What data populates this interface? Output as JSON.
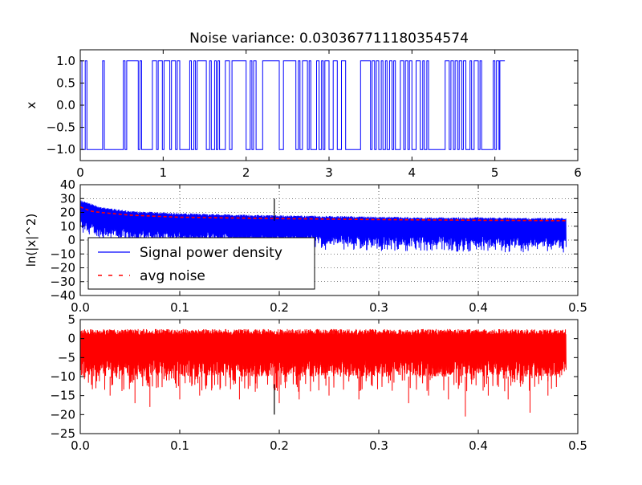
{
  "figure": {
    "title": "Noise variance: 0.030367711180354574"
  },
  "chart_data": [
    {
      "type": "line",
      "title": "Noise variance: 0.030367711180354574",
      "xlabel": "",
      "ylabel": "x",
      "xlim": [
        0,
        6
      ],
      "ylim": [
        -1.25,
        1.25
      ],
      "xticks": [
        "0",
        "1",
        "2",
        "3",
        "4",
        "5",
        "6"
      ],
      "yticks": [
        "1.0",
        "0.5",
        "0.0",
        "−0.5",
        "−1.0"
      ],
      "grid": false,
      "series": [
        {
          "color": "#0000ff",
          "style": "step",
          "x_end": 5.12,
          "transitions": [
            [
              0.0,
              1
            ],
            [
              0.02,
              -1
            ],
            [
              0.06,
              1
            ],
            [
              0.08,
              -1
            ],
            [
              0.27,
              1
            ],
            [
              0.29,
              -1
            ],
            [
              0.52,
              1
            ],
            [
              0.54,
              -1
            ],
            [
              0.56,
              1
            ],
            [
              0.7,
              -1
            ],
            [
              0.72,
              1
            ],
            [
              0.74,
              -1
            ],
            [
              0.87,
              1
            ],
            [
              0.92,
              -1
            ],
            [
              0.94,
              1
            ],
            [
              0.99,
              -1
            ],
            [
              1.01,
              1
            ],
            [
              1.08,
              -1
            ],
            [
              1.1,
              1
            ],
            [
              1.15,
              -1
            ],
            [
              1.17,
              1
            ],
            [
              1.2,
              -1
            ],
            [
              1.32,
              1
            ],
            [
              1.34,
              -1
            ],
            [
              1.37,
              1
            ],
            [
              1.39,
              -1
            ],
            [
              1.41,
              1
            ],
            [
              1.52,
              -1
            ],
            [
              1.56,
              1
            ],
            [
              1.58,
              -1
            ],
            [
              1.62,
              1
            ],
            [
              1.64,
              -1
            ],
            [
              1.66,
              1
            ],
            [
              1.68,
              -1
            ],
            [
              1.75,
              1
            ],
            [
              1.8,
              -1
            ],
            [
              1.83,
              1
            ],
            [
              2.0,
              -1
            ],
            [
              2.05,
              1
            ],
            [
              2.07,
              -1
            ],
            [
              2.09,
              1
            ],
            [
              2.12,
              -1
            ],
            [
              2.2,
              1
            ],
            [
              2.4,
              -1
            ],
            [
              2.45,
              1
            ],
            [
              2.6,
              -1
            ],
            [
              2.63,
              1
            ],
            [
              2.65,
              -1
            ],
            [
              2.68,
              1
            ],
            [
              2.74,
              -1
            ],
            [
              2.76,
              1
            ],
            [
              2.78,
              -1
            ],
            [
              2.85,
              1
            ],
            [
              2.88,
              -1
            ],
            [
              2.91,
              1
            ],
            [
              2.93,
              -1
            ],
            [
              2.95,
              1
            ],
            [
              3.0,
              -1
            ],
            [
              3.05,
              1
            ],
            [
              3.1,
              -1
            ],
            [
              3.15,
              1
            ],
            [
              3.2,
              -1
            ],
            [
              3.38,
              1
            ],
            [
              3.5,
              -1
            ],
            [
              3.52,
              1
            ],
            [
              3.55,
              -1
            ],
            [
              3.57,
              1
            ],
            [
              3.6,
              -1
            ],
            [
              3.63,
              1
            ],
            [
              3.65,
              -1
            ],
            [
              3.68,
              1
            ],
            [
              3.7,
              -1
            ],
            [
              3.73,
              1
            ],
            [
              3.76,
              -1
            ],
            [
              3.78,
              1
            ],
            [
              3.8,
              -1
            ],
            [
              3.86,
              1
            ],
            [
              3.9,
              -1
            ],
            [
              3.92,
              1
            ],
            [
              3.95,
              -1
            ],
            [
              3.97,
              1
            ],
            [
              4.0,
              -1
            ],
            [
              4.05,
              1
            ],
            [
              4.1,
              -1
            ],
            [
              4.13,
              1
            ],
            [
              4.15,
              -1
            ],
            [
              4.18,
              1
            ],
            [
              4.2,
              -1
            ],
            [
              4.4,
              1
            ],
            [
              4.45,
              -1
            ],
            [
              4.47,
              1
            ],
            [
              4.5,
              -1
            ],
            [
              4.52,
              1
            ],
            [
              4.55,
              -1
            ],
            [
              4.57,
              1
            ],
            [
              4.6,
              -1
            ],
            [
              4.62,
              1
            ],
            [
              4.65,
              -1
            ],
            [
              4.7,
              1
            ],
            [
              4.72,
              -1
            ],
            [
              4.75,
              1
            ],
            [
              4.8,
              -1
            ],
            [
              4.82,
              1
            ],
            [
              4.84,
              -1
            ],
            [
              4.98,
              1
            ],
            [
              5.0,
              -1
            ],
            [
              5.02,
              1
            ],
            [
              5.05,
              -1
            ],
            [
              5.06,
              1
            ]
          ]
        }
      ]
    },
    {
      "type": "line",
      "title": "",
      "xlabel": "",
      "ylabel": "ln(|x|^2)",
      "xlim": [
        0,
        0.5
      ],
      "ylim": [
        -40,
        40
      ],
      "xticks": [
        "0.0",
        "0.1",
        "0.2",
        "0.3",
        "0.4",
        "0.5"
      ],
      "yticks": [
        "40",
        "30",
        "20",
        "10",
        "0",
        "−10",
        "−20",
        "−30",
        "−40"
      ],
      "grid": true,
      "legend": {
        "placement": "center-left",
        "entries": [
          "Signal power density",
          "avg noise"
        ]
      },
      "series": [
        {
          "name": "Signal power density",
          "color": "#0000ff",
          "style": "noisy band",
          "x": [
            0.0,
            0.02,
            0.05,
            0.1,
            0.15,
            0.2,
            0.25,
            0.3,
            0.35,
            0.4,
            0.45,
            0.488
          ],
          "upper": [
            29,
            24,
            21,
            19.5,
            18.5,
            18,
            17.5,
            17,
            16.5,
            16.5,
            16,
            16
          ],
          "lower": [
            8,
            2,
            1,
            -1,
            -2,
            -3,
            -3,
            -4,
            -4,
            -5,
            -5,
            -5
          ]
        },
        {
          "name": "avg noise",
          "color": "#ff0000",
          "style": "dashed",
          "x": [
            0.0,
            0.01,
            0.02,
            0.05,
            0.1,
            0.15,
            0.2,
            0.3,
            0.4,
            0.488
          ],
          "values": [
            24,
            21,
            20,
            18,
            16.5,
            16,
            15.5,
            14.8,
            14.3,
            14
          ]
        }
      ],
      "annotations": [
        {
          "type": "spike",
          "x": 0.195,
          "y_from": 14,
          "y_to": 30,
          "color": "#000000"
        }
      ]
    },
    {
      "type": "line",
      "title": "",
      "xlabel": "",
      "ylabel": "",
      "xlim": [
        0,
        0.5
      ],
      "ylim": [
        -25,
        5
      ],
      "xticks": [
        "0.0",
        "0.1",
        "0.2",
        "0.3",
        "0.4",
        "0.5"
      ],
      "yticks": [
        "5",
        "0",
        "−5",
        "−10",
        "−15",
        "−20",
        "−25"
      ],
      "grid": false,
      "series": [
        {
          "color": "#ff0000",
          "style": "noisy band",
          "x_start": 0.0,
          "x_end": 0.488,
          "upper": 2.5,
          "lower": -10,
          "outliers": [
            [
              0.03,
              -15
            ],
            [
              0.055,
              -17
            ],
            [
              0.07,
              -18
            ],
            [
              0.1,
              -16
            ],
            [
              0.12,
              -15
            ],
            [
              0.16,
              -16
            ],
            [
              0.2,
              -17
            ],
            [
              0.22,
              -16
            ],
            [
              0.25,
              -15
            ],
            [
              0.28,
              -16
            ],
            [
              0.33,
              -17
            ],
            [
              0.35,
              -15
            ],
            [
              0.37,
              -16
            ],
            [
              0.387,
              -20.5
            ],
            [
              0.41,
              -15
            ],
            [
              0.43,
              -16
            ],
            [
              0.452,
              -19.5
            ],
            [
              0.47,
              -15
            ]
          ]
        }
      ],
      "annotations": [
        {
          "type": "spike",
          "x": 0.195,
          "y_from": -12,
          "y_to": -20,
          "color": "#000000"
        }
      ]
    }
  ]
}
